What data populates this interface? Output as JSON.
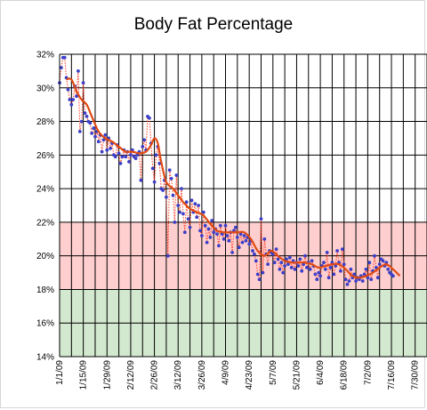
{
  "chart_data": {
    "type": "scatter",
    "title": "Body Fat Percentage",
    "xlabel": "",
    "ylabel": "",
    "ylim": [
      14,
      32
    ],
    "y_ticks": [
      "14%",
      "16%",
      "18%",
      "20%",
      "22%",
      "24%",
      "26%",
      "28%",
      "30%",
      "32%"
    ],
    "x_ticks": [
      "1/1/09",
      "1/15/09",
      "1/29/09",
      "2/12/09",
      "2/26/09",
      "3/12/09",
      "3/26/09",
      "4/9/09",
      "4/23/09",
      "5/7/09",
      "5/21/09",
      "6/4/09",
      "6/18/09",
      "7/2/09",
      "7/16/09",
      "7/30/09"
    ],
    "xlim": [
      "2009-01-01",
      "2009-08-06"
    ],
    "grid": true,
    "bands": [
      {
        "from": 14,
        "to": 18,
        "color": "#d3e9cf"
      },
      {
        "from": 18,
        "to": 22,
        "color": "#ffcfcf"
      }
    ],
    "series": [
      {
        "style": "markers-dotted",
        "color": "#3c3fc8",
        "line_color": "#ff3b1f",
        "points": [
          [
            "2009-01-01",
            30.3
          ],
          [
            "2009-01-02",
            31.2
          ],
          [
            "2009-01-03",
            31.8
          ],
          [
            "2009-01-04",
            31.8
          ],
          [
            "2009-01-05",
            30.6
          ],
          [
            "2009-01-06",
            29.9
          ],
          [
            "2009-01-07",
            29.3
          ],
          [
            "2009-01-08",
            29.0
          ],
          [
            "2009-01-09",
            29.3
          ],
          [
            "2009-01-10",
            30.1
          ],
          [
            "2009-01-11",
            29.5
          ],
          [
            "2009-01-12",
            31.0
          ],
          [
            "2009-01-13",
            27.4
          ],
          [
            "2009-01-14",
            28.0
          ],
          [
            "2009-01-15",
            30.3
          ],
          [
            "2009-01-16",
            28.5
          ],
          [
            "2009-01-17",
            28.3
          ],
          [
            "2009-01-18",
            28.0
          ],
          [
            "2009-01-19",
            27.9
          ],
          [
            "2009-01-20",
            27.3
          ],
          [
            "2009-01-21",
            27.6
          ],
          [
            "2009-01-22",
            27.1
          ],
          [
            "2009-01-23",
            27.4
          ],
          [
            "2009-01-24",
            26.8
          ],
          [
            "2009-01-25",
            27.2
          ],
          [
            "2009-01-26",
            26.2
          ],
          [
            "2009-01-27",
            26.9
          ],
          [
            "2009-01-28",
            27.2
          ],
          [
            "2009-01-29",
            26.3
          ],
          [
            "2009-01-30",
            27.0
          ],
          [
            "2009-01-31",
            26.4
          ],
          [
            "2009-02-01",
            26.7
          ],
          [
            "2009-02-02",
            26.0
          ],
          [
            "2009-02-03",
            25.9
          ],
          [
            "2009-02-04",
            26.6
          ],
          [
            "2009-02-05",
            26.1
          ],
          [
            "2009-02-06",
            25.5
          ],
          [
            "2009-02-07",
            25.9
          ],
          [
            "2009-02-08",
            26.3
          ],
          [
            "2009-02-09",
            25.9
          ],
          [
            "2009-02-10",
            26.2
          ],
          [
            "2009-02-11",
            25.6
          ],
          [
            "2009-02-12",
            26.0
          ],
          [
            "2009-02-13",
            26.3
          ],
          [
            "2009-02-14",
            25.9
          ],
          [
            "2009-02-15",
            25.8
          ],
          [
            "2009-02-16",
            26.0
          ],
          [
            "2009-02-17",
            26.2
          ],
          [
            "2009-02-18",
            24.5
          ],
          [
            "2009-02-19",
            26.5
          ],
          [
            "2009-02-20",
            26.9
          ],
          [
            "2009-02-21",
            26.3
          ],
          [
            "2009-02-22",
            28.3
          ],
          [
            "2009-02-23",
            28.2
          ],
          [
            "2009-02-24",
            26.7
          ],
          [
            "2009-02-25",
            25.2
          ],
          [
            "2009-02-26",
            24.4
          ],
          [
            "2009-02-27",
            26.0
          ],
          [
            "2009-02-28",
            26.5
          ],
          [
            "2009-03-01",
            25.5
          ],
          [
            "2009-03-02",
            24.0
          ],
          [
            "2009-03-03",
            23.9
          ],
          [
            "2009-03-04",
            24.5
          ],
          [
            "2009-03-05",
            23.5
          ],
          [
            "2009-03-06",
            20.0
          ],
          [
            "2009-03-07",
            25.1
          ],
          [
            "2009-03-08",
            24.6
          ],
          [
            "2009-03-09",
            23.6
          ],
          [
            "2009-03-10",
            22.0
          ],
          [
            "2009-03-11",
            24.8
          ],
          [
            "2009-03-12",
            23.0
          ],
          [
            "2009-03-13",
            22.6
          ],
          [
            "2009-03-14",
            24.0
          ],
          [
            "2009-03-15",
            22.5
          ],
          [
            "2009-03-16",
            21.4
          ],
          [
            "2009-03-17",
            23.2
          ],
          [
            "2009-03-18",
            22.2
          ],
          [
            "2009-03-19",
            21.7
          ],
          [
            "2009-03-20",
            23.3
          ],
          [
            "2009-03-21",
            22.6
          ],
          [
            "2009-03-22",
            23.1
          ],
          [
            "2009-03-23",
            22.3
          ],
          [
            "2009-03-24",
            23.0
          ],
          [
            "2009-03-25",
            21.5
          ],
          [
            "2009-03-26",
            21.2
          ],
          [
            "2009-03-27",
            22.6
          ],
          [
            "2009-03-28",
            21.8
          ],
          [
            "2009-03-29",
            20.8
          ],
          [
            "2009-03-30",
            21.6
          ],
          [
            "2009-03-31",
            21.1
          ],
          [
            "2009-04-01",
            22.1
          ],
          [
            "2009-04-02",
            21.4
          ],
          [
            "2009-04-03",
            21.6
          ],
          [
            "2009-04-04",
            21.3
          ],
          [
            "2009-04-05",
            20.6
          ],
          [
            "2009-04-06",
            21.8
          ],
          [
            "2009-04-07",
            21.3
          ],
          [
            "2009-04-08",
            21.0
          ],
          [
            "2009-04-09",
            21.8
          ],
          [
            "2009-04-10",
            21.2
          ],
          [
            "2009-04-11",
            20.9
          ],
          [
            "2009-04-12",
            21.4
          ],
          [
            "2009-04-13",
            20.2
          ],
          [
            "2009-04-14",
            21.5
          ],
          [
            "2009-04-15",
            21.7
          ],
          [
            "2009-04-16",
            21.1
          ],
          [
            "2009-04-17",
            20.5
          ],
          [
            "2009-04-18",
            21.3
          ],
          [
            "2009-04-19",
            20.8
          ],
          [
            "2009-04-20",
            21.2
          ],
          [
            "2009-04-21",
            20.9
          ],
          [
            "2009-04-22",
            21.1
          ],
          [
            "2009-04-23",
            20.7
          ],
          [
            "2009-04-24",
            20.9
          ],
          [
            "2009-04-25",
            20.3
          ],
          [
            "2009-04-26",
            20.1
          ],
          [
            "2009-04-27",
            19.7
          ],
          [
            "2009-04-28",
            18.9
          ],
          [
            "2009-04-29",
            18.6
          ],
          [
            "2009-04-30",
            22.2
          ],
          [
            "2009-05-01",
            19.0
          ],
          [
            "2009-05-02",
            21.0
          ],
          [
            "2009-05-03",
            20.1
          ],
          [
            "2009-05-04",
            19.5
          ],
          [
            "2009-05-05",
            20.3
          ],
          [
            "2009-05-06",
            20.2
          ],
          [
            "2009-05-07",
            20.1
          ],
          [
            "2009-05-08",
            19.6
          ],
          [
            "2009-05-09",
            20.4
          ],
          [
            "2009-05-10",
            19.8
          ],
          [
            "2009-05-11",
            19.2
          ],
          [
            "2009-05-12",
            19.6
          ],
          [
            "2009-05-13",
            19.0
          ],
          [
            "2009-05-14",
            19.4
          ],
          [
            "2009-05-15",
            19.8
          ],
          [
            "2009-05-16",
            19.5
          ],
          [
            "2009-05-17",
            19.9
          ],
          [
            "2009-05-18",
            19.3
          ],
          [
            "2009-05-19",
            19.7
          ],
          [
            "2009-05-20",
            19.2
          ],
          [
            "2009-05-21",
            19.6
          ],
          [
            "2009-05-22",
            19.4
          ],
          [
            "2009-05-23",
            19.8
          ],
          [
            "2009-05-24",
            19.1
          ],
          [
            "2009-05-25",
            19.5
          ],
          [
            "2009-05-26",
            20.0
          ],
          [
            "2009-05-27",
            19.3
          ],
          [
            "2009-05-28",
            19.6
          ],
          [
            "2009-05-29",
            19.2
          ],
          [
            "2009-05-30",
            19.7
          ],
          [
            "2009-05-31",
            19.4
          ],
          [
            "2009-06-01",
            18.9
          ],
          [
            "2009-06-02",
            18.6
          ],
          [
            "2009-06-03",
            19.0
          ],
          [
            "2009-06-04",
            18.8
          ],
          [
            "2009-06-05",
            19.4
          ],
          [
            "2009-06-06",
            19.6
          ],
          [
            "2009-06-07",
            19.2
          ],
          [
            "2009-06-08",
            20.2
          ],
          [
            "2009-06-09",
            18.7
          ],
          [
            "2009-06-10",
            19.3
          ],
          [
            "2009-06-11",
            19.6
          ],
          [
            "2009-06-12",
            18.9
          ],
          [
            "2009-06-13",
            19.4
          ],
          [
            "2009-06-14",
            20.3
          ],
          [
            "2009-06-15",
            19.6
          ],
          [
            "2009-06-16",
            19.1
          ],
          [
            "2009-06-17",
            20.4
          ],
          [
            "2009-06-18",
            19.5
          ],
          [
            "2009-06-19",
            18.6
          ],
          [
            "2009-06-20",
            18.3
          ],
          [
            "2009-06-21",
            18.5
          ],
          [
            "2009-06-22",
            19.2
          ],
          [
            "2009-06-23",
            18.7
          ],
          [
            "2009-06-24",
            18.9
          ],
          [
            "2009-06-25",
            18.5
          ],
          [
            "2009-06-26",
            18.7
          ],
          [
            "2009-06-27",
            18.6
          ],
          [
            "2009-06-28",
            18.8
          ],
          [
            "2009-06-29",
            18.5
          ],
          [
            "2009-06-30",
            18.9
          ],
          [
            "2009-07-01",
            19.2
          ],
          [
            "2009-07-02",
            18.7
          ],
          [
            "2009-07-03",
            19.6
          ],
          [
            "2009-07-04",
            18.6
          ],
          [
            "2009-07-05",
            19.1
          ],
          [
            "2009-07-06",
            20.0
          ],
          [
            "2009-07-07",
            19.3
          ],
          [
            "2009-07-08",
            18.7
          ],
          [
            "2009-07-09",
            19.5
          ],
          [
            "2009-07-10",
            19.8
          ],
          [
            "2009-07-11",
            19.7
          ],
          [
            "2009-07-12",
            19.4
          ],
          [
            "2009-07-13",
            19.6
          ],
          [
            "2009-07-14",
            19.2
          ],
          [
            "2009-07-15",
            19.0
          ],
          [
            "2009-07-16",
            18.9
          ],
          [
            "2009-07-17",
            18.8
          ]
        ]
      },
      {
        "style": "smooth-line",
        "color": "#e04a13",
        "points": [
          [
            "2009-01-05",
            30.5
          ],
          [
            "2009-01-08",
            30.5
          ],
          [
            "2009-01-11",
            29.8
          ],
          [
            "2009-01-14",
            29.3
          ],
          [
            "2009-01-17",
            29.0
          ],
          [
            "2009-01-20",
            28.3
          ],
          [
            "2009-01-24",
            27.4
          ],
          [
            "2009-01-28",
            27.0
          ],
          [
            "2009-02-01",
            26.8
          ],
          [
            "2009-02-05",
            26.5
          ],
          [
            "2009-02-09",
            26.2
          ],
          [
            "2009-02-13",
            26.2
          ],
          [
            "2009-02-17",
            26.1
          ],
          [
            "2009-02-21",
            26.2
          ],
          [
            "2009-02-24",
            26.6
          ],
          [
            "2009-02-26",
            27.0
          ],
          [
            "2009-02-28",
            26.7
          ],
          [
            "2009-03-02",
            25.6
          ],
          [
            "2009-03-05",
            24.4
          ],
          [
            "2009-03-09",
            24.0
          ],
          [
            "2009-03-12",
            23.6
          ],
          [
            "2009-03-15",
            23.2
          ],
          [
            "2009-03-19",
            22.8
          ],
          [
            "2009-03-23",
            22.6
          ],
          [
            "2009-03-27",
            22.4
          ],
          [
            "2009-03-31",
            21.9
          ],
          [
            "2009-04-04",
            21.5
          ],
          [
            "2009-04-08",
            21.4
          ],
          [
            "2009-04-12",
            21.4
          ],
          [
            "2009-04-16",
            21.4
          ],
          [
            "2009-04-20",
            21.4
          ],
          [
            "2009-04-24",
            21.0
          ],
          [
            "2009-04-28",
            20.3
          ],
          [
            "2009-05-02",
            20.0
          ],
          [
            "2009-05-06",
            20.3
          ],
          [
            "2009-05-10",
            20.0
          ],
          [
            "2009-05-14",
            19.7
          ],
          [
            "2009-05-18",
            19.6
          ],
          [
            "2009-05-22",
            19.6
          ],
          [
            "2009-05-26",
            19.6
          ],
          [
            "2009-05-30",
            19.5
          ],
          [
            "2009-06-03",
            19.3
          ],
          [
            "2009-06-07",
            19.4
          ],
          [
            "2009-06-11",
            19.5
          ],
          [
            "2009-06-15",
            19.5
          ],
          [
            "2009-06-19",
            19.2
          ],
          [
            "2009-06-23",
            18.8
          ],
          [
            "2009-06-27",
            18.7
          ],
          [
            "2009-07-01",
            18.8
          ],
          [
            "2009-07-05",
            19.0
          ],
          [
            "2009-07-09",
            19.3
          ],
          [
            "2009-07-13",
            19.5
          ],
          [
            "2009-07-17",
            19.2
          ],
          [
            "2009-07-21",
            18.8
          ]
        ]
      }
    ]
  }
}
